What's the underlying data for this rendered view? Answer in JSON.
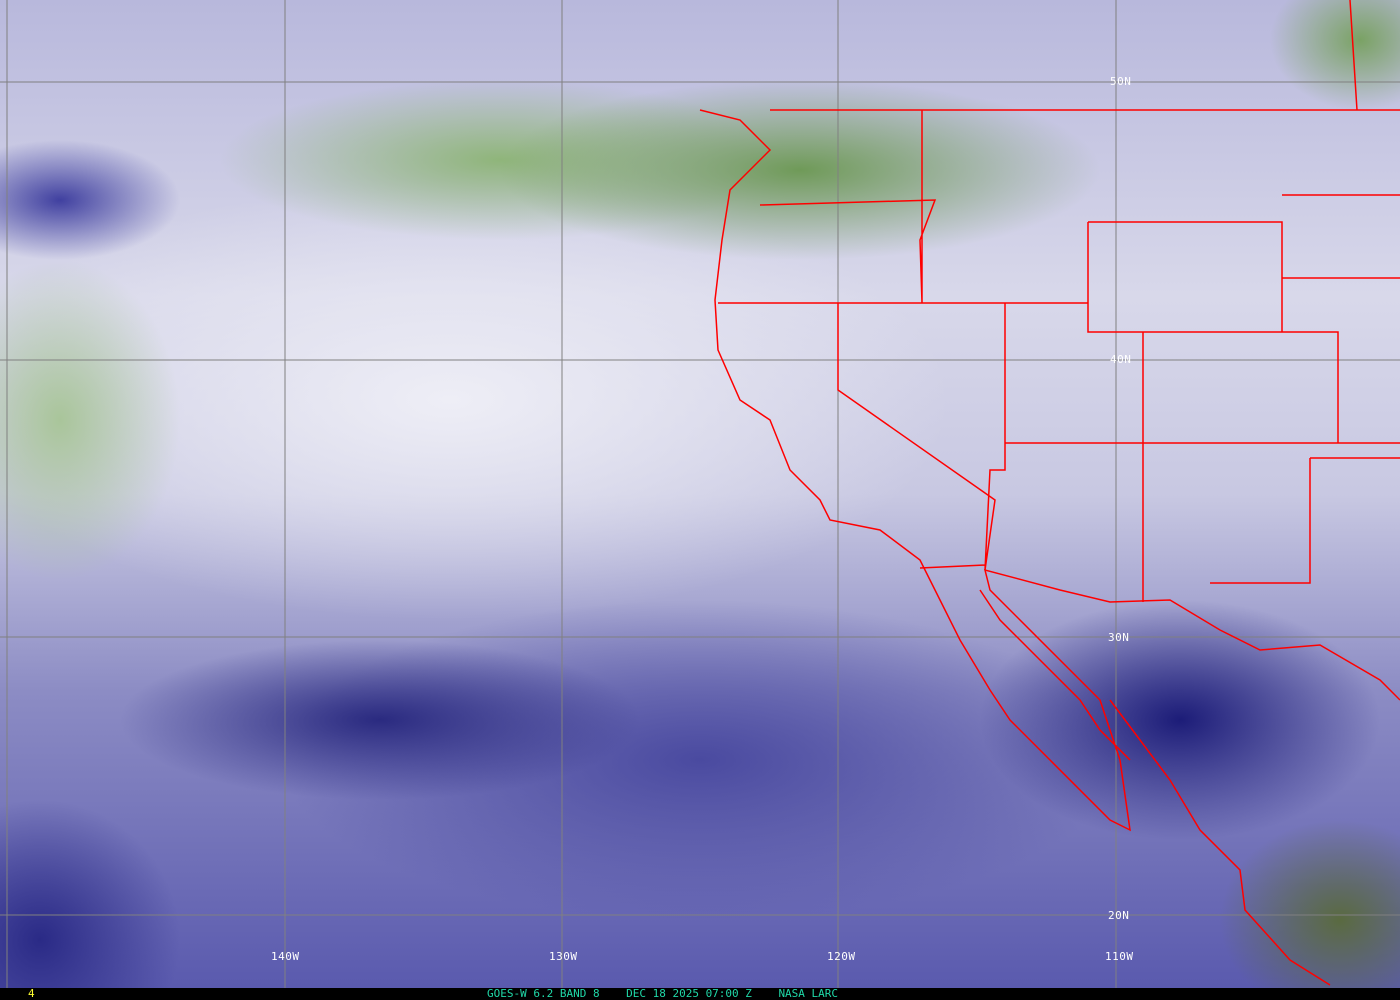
{
  "map": {
    "longitude_labels": [
      "140W",
      "130W",
      "120W",
      "110W"
    ],
    "latitude_labels": [
      "50N",
      "40N",
      "30N",
      "20N"
    ],
    "border_color": "#ff0000",
    "grid_color": "#808080"
  },
  "footer": {
    "frame_number": "4",
    "satellite": "GOES-W 6.2 BAND 8",
    "datetime": "DEC 18 2025 07:00 Z",
    "source": "NASA LARC"
  }
}
